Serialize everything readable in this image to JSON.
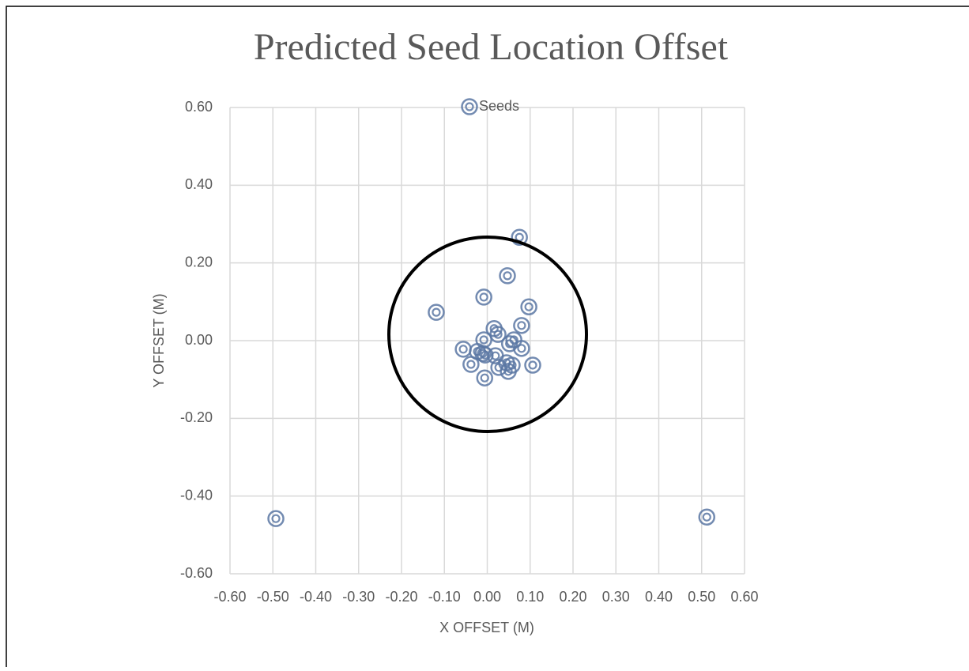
{
  "chart_data": {
    "type": "scatter",
    "title": "Predicted Seed Location Offset",
    "x_label": "X OFFSET (M)",
    "y_label": "Y OFFSET (M)",
    "legend": "top",
    "grid": true,
    "xlim": [
      -0.6,
      0.6
    ],
    "ylim": [
      -0.6,
      0.6
    ],
    "xticks": [
      {
        "value": -0.6,
        "label": "-0.60"
      },
      {
        "value": -0.5,
        "label": "-0.50"
      },
      {
        "value": -0.4,
        "label": "-0.40"
      },
      {
        "value": -0.3,
        "label": "-0.30"
      },
      {
        "value": -0.2,
        "label": "-0.20"
      },
      {
        "value": -0.1,
        "label": "-0.10"
      },
      {
        "value": 0,
        "label": "0.00"
      },
      {
        "value": 0.1,
        "label": "0.10"
      },
      {
        "value": 0.2,
        "label": "0.20"
      },
      {
        "value": 0.3,
        "label": "0.30"
      },
      {
        "value": 0.4,
        "label": "0.40"
      },
      {
        "value": 0.5,
        "label": "0.50"
      },
      {
        "value": 0.6,
        "label": "0.60"
      }
    ],
    "yticks": [
      {
        "value": 0.6,
        "label": "0.60"
      },
      {
        "value": 0.4,
        "label": "0.40"
      },
      {
        "value": 0.2,
        "label": "0.20"
      },
      {
        "value": 0,
        "label": "0.00"
      },
      {
        "value": -0.2,
        "label": "-0.20"
      },
      {
        "value": -0.4,
        "label": "-0.40"
      },
      {
        "value": -0.6,
        "label": "-0.60"
      }
    ],
    "series": [
      {
        "name": "Seeds",
        "color": "#5b77a3",
        "x": [
          0.075,
          0.047,
          -0.008,
          0.097,
          -0.119,
          0.08,
          0.016,
          0.025,
          -0.008,
          0.062,
          0.052,
          0.08,
          -0.056,
          -0.023,
          -0.01,
          -0.005,
          0.019,
          -0.038,
          0.045,
          0.027,
          0.058,
          0.106,
          0.049,
          -0.006,
          -0.493,
          0.512
        ],
        "values": [
          0.266,
          0.167,
          0.112,
          0.087,
          0.073,
          0.039,
          0.031,
          0.016,
          0.002,
          0.002,
          -0.008,
          -0.02,
          -0.022,
          -0.028,
          -0.033,
          -0.037,
          -0.039,
          -0.061,
          -0.057,
          -0.069,
          -0.063,
          -0.063,
          -0.079,
          -0.096,
          -0.458,
          -0.454
        ]
      }
    ]
  }
}
